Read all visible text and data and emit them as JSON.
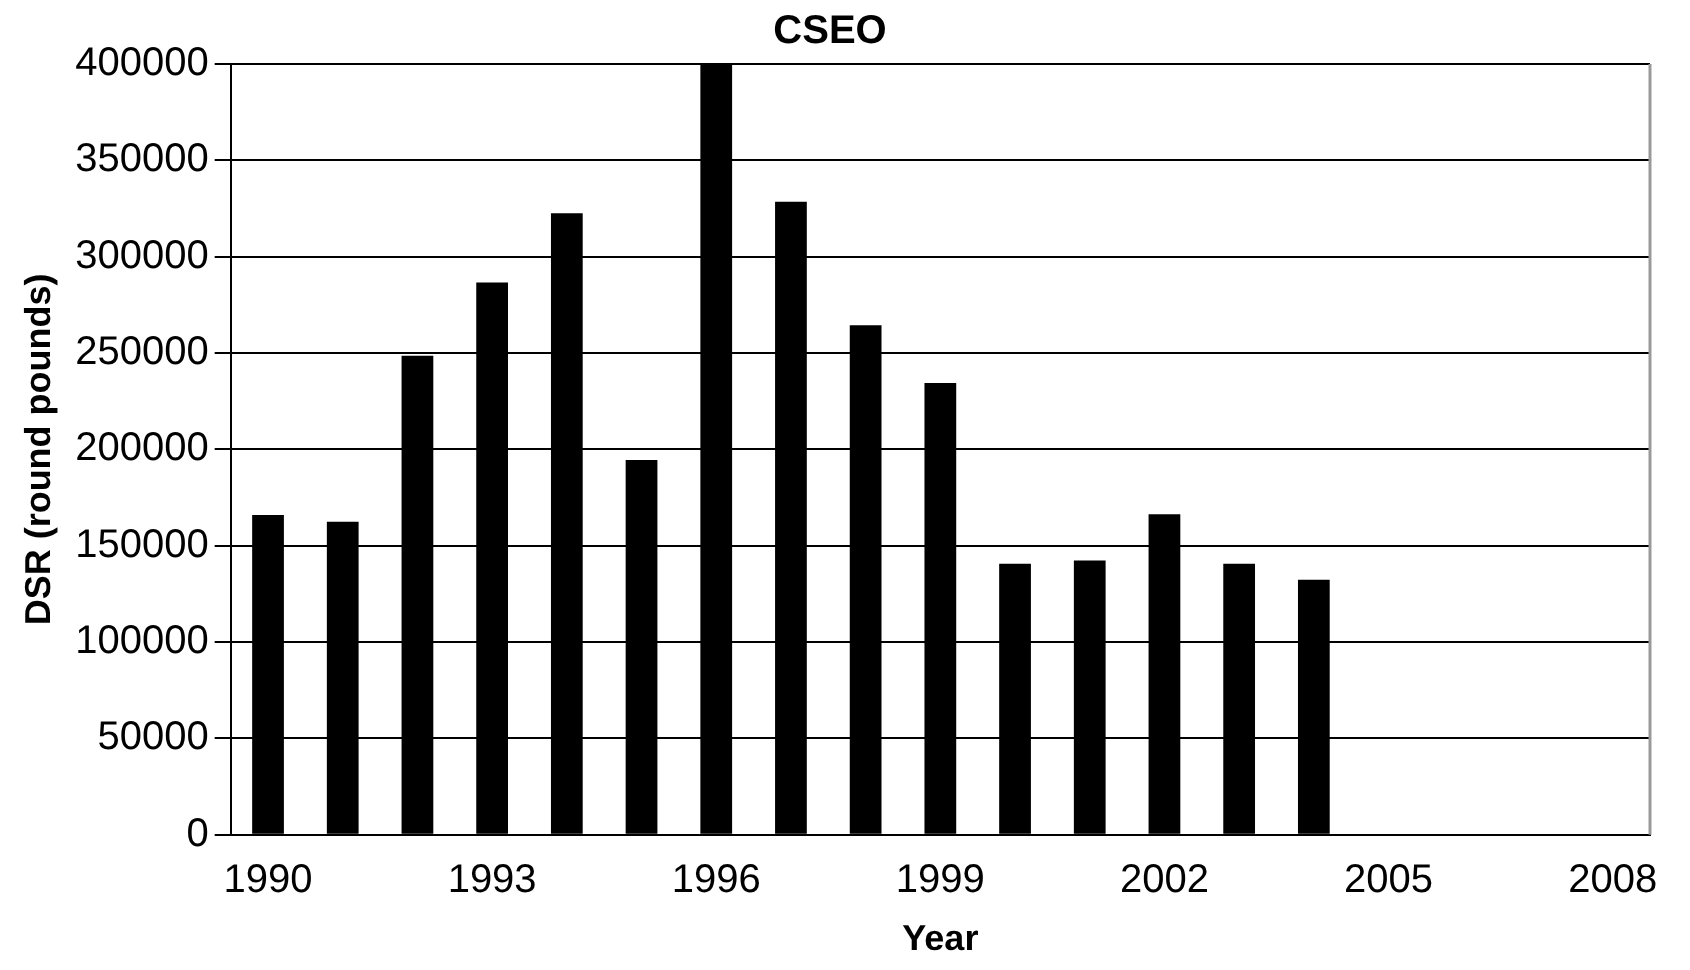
{
  "chart_data": {
    "type": "bar",
    "title": "CSEO",
    "xlabel": "Year",
    "ylabel": "DSR (round pounds)",
    "categories": [
      "1990",
      null,
      null,
      "1993",
      null,
      null,
      "1996",
      null,
      null,
      "1999",
      null,
      null,
      "2002",
      null,
      null,
      "2005",
      null,
      null,
      "2008"
    ],
    "values": [
      166000,
      162500,
      248600,
      286600,
      322500,
      194500,
      400000,
      328500,
      264400,
      234400,
      140700,
      142300,
      166400,
      140700,
      132400,
      null,
      null,
      null,
      null
    ],
    "color": "#000000",
    "ylim": [
      0,
      400000
    ],
    "yticks": [
      0,
      50000,
      100000,
      150000,
      200000,
      250000,
      300000,
      350000,
      400000
    ],
    "grid": "y",
    "legend": false
  }
}
